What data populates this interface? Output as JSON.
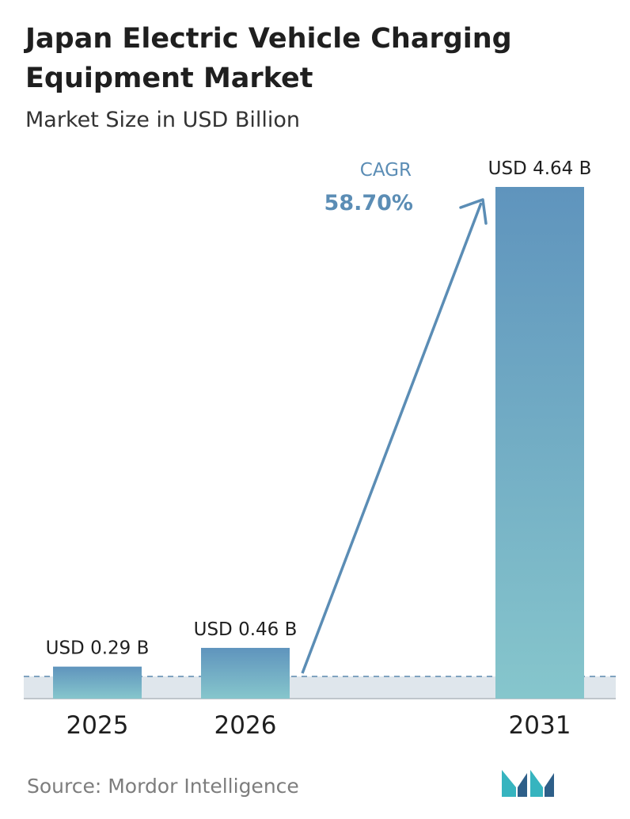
{
  "title": "Japan Electric Vehicle Charging Equipment Market",
  "subtitle": "Market Size in USD Billion",
  "source": "Source:  Mordor Intelligence",
  "cagr": {
    "label": "CAGR",
    "value": "58.70%"
  },
  "colors": {
    "bar_top": "#5f94bd",
    "bar_bottom": "#86c6cc",
    "cagr": "#5b8db5",
    "baseline_band": "#dfe6ec",
    "dashed_line": "#5c89ae",
    "logo_teal": "#36b4bf",
    "logo_blue": "#2e5f89"
  },
  "chart_data": {
    "type": "bar",
    "categories": [
      "2025",
      "2026",
      "2031"
    ],
    "values": [
      0.29,
      0.46,
      4.64
    ],
    "data_labels": [
      "USD 0.29 B",
      "USD 0.46 B",
      "USD 4.64 B"
    ],
    "title": "Japan Electric Vehicle Charging Equipment Market",
    "subtitle": "Market Size in USD Billion",
    "xlabel": "",
    "ylabel": "",
    "ylim": [
      0,
      4.64
    ],
    "grid": false,
    "legend": "none"
  },
  "logo_icon": "mordor-intelligence-logo-icon"
}
